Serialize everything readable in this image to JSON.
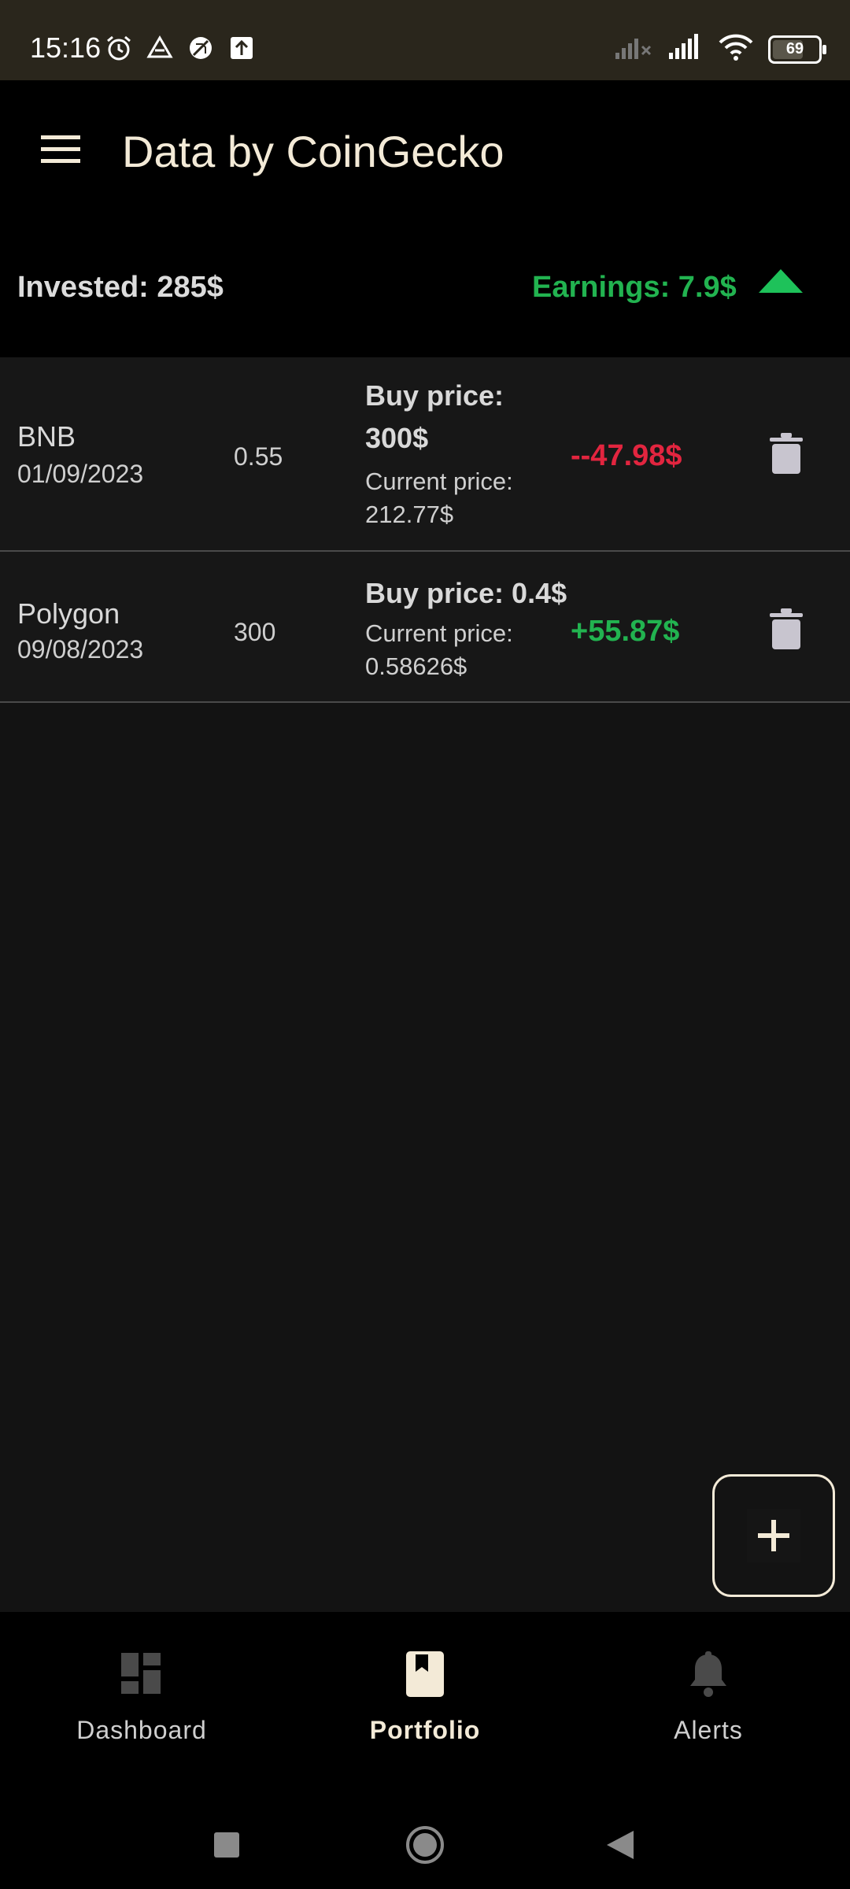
{
  "status_bar": {
    "time": "15:16",
    "battery_level": "69",
    "icons": [
      "alarm-icon",
      "drive-icon",
      "no-sim-icon",
      "upload-icon",
      "signal-icon",
      "wifi-icon",
      "battery-icon"
    ]
  },
  "app_bar": {
    "title": "Data by CoinGecko",
    "menu_icon": "menu-icon"
  },
  "summary": {
    "invested": "Invested: 285$",
    "earnings": "Earnings: 7.9$",
    "trend_icon": "arrow-up-icon",
    "earnings_color": "#22b350"
  },
  "portfolio": {
    "items": [
      {
        "name": "BNB",
        "date": "01/09/2023",
        "quantity": "0.55",
        "buy_price_line1": "Buy price:",
        "buy_price_line2": "300$",
        "current_price_label": "Current price:",
        "current_price_value": "212.77$",
        "profit_loss": "--47.98$",
        "profit_color": "#e2253f"
      },
      {
        "name": "Polygon",
        "date": "09/08/2023",
        "quantity": "300",
        "buy_price": "Buy price: 0.4$",
        "current_price_label": "Current price:",
        "current_price_value": "0.58626$",
        "profit_loss": "+55.87$",
        "profit_color": "#22b350"
      }
    ]
  },
  "fab": {
    "icon": "plus-icon"
  },
  "bottom_nav": {
    "items": [
      {
        "label": "Dashboard",
        "icon": "dashboard-icon",
        "active": false
      },
      {
        "label": "Portfolio",
        "icon": "bookmark-icon",
        "active": true
      },
      {
        "label": "Alerts",
        "icon": "bell-icon",
        "active": false
      }
    ]
  },
  "system_nav": {
    "buttons": [
      "recents-icon",
      "home-icon",
      "back-icon"
    ]
  },
  "colors": {
    "background": "#131313",
    "accent": "#f3ead7",
    "positive": "#22b350",
    "negative": "#e2253f"
  }
}
